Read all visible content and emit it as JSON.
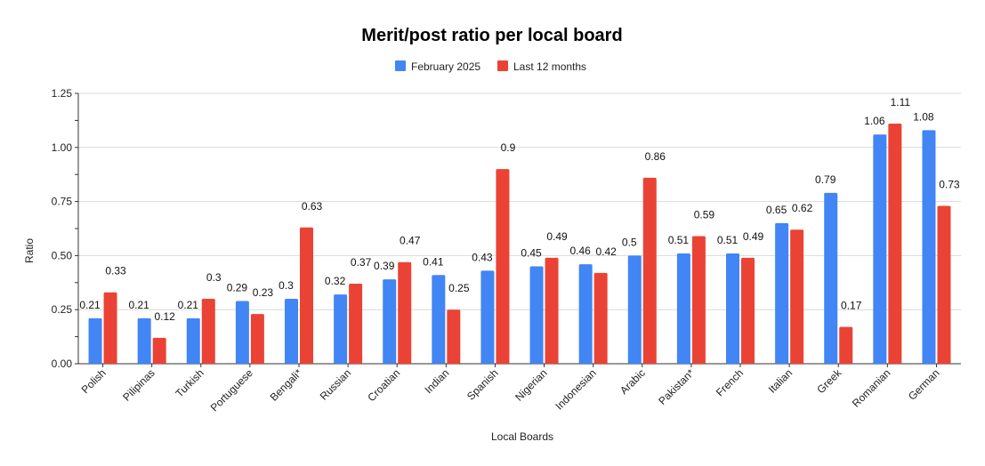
{
  "chart_data": {
    "type": "bar",
    "title": "Merit/post ratio per local board",
    "xlabel": "Local Boards",
    "ylabel": "Ratio",
    "ylim": [
      0,
      1.25
    ],
    "yticks": [
      "0.00",
      "0.25",
      "0.50",
      "0.75",
      "1.00",
      "1.25"
    ],
    "grid": true,
    "legend_position": "top",
    "categories": [
      "Polish",
      "Pilipinas",
      "Turkish",
      "Portuguese",
      "Bengali*",
      "Russian",
      "Croatian",
      "Indian",
      "Spanish",
      "Nigerian",
      "Indonesian",
      "Arabic",
      "Pakistan*",
      "French",
      "Italian",
      "Greek",
      "Romanian",
      "German"
    ],
    "series": [
      {
        "name": "February 2025",
        "color": "#4285F4",
        "values": [
          0.21,
          0.21,
          0.21,
          0.29,
          0.3,
          0.32,
          0.39,
          0.41,
          0.43,
          0.45,
          0.46,
          0.5,
          0.51,
          0.51,
          0.65,
          0.79,
          1.06,
          1.08
        ],
        "labels": [
          "0.21",
          "0.21",
          "0.21",
          "0.29",
          "0.3",
          "0.32",
          "0.39",
          "0.41",
          "0.43",
          "0.45",
          "0.46",
          "0.5",
          "0.51",
          "0.51",
          "0.65",
          "0.79",
          "1.06",
          "1.08"
        ]
      },
      {
        "name": "Last 12 months",
        "color": "#EA4335",
        "values": [
          0.33,
          0.12,
          0.3,
          0.23,
          0.63,
          0.37,
          0.47,
          0.25,
          0.9,
          0.49,
          0.42,
          0.86,
          0.59,
          0.49,
          0.62,
          0.17,
          1.11,
          0.73
        ],
        "labels": [
          "0.33",
          "0.12",
          "0.3",
          "0.23",
          "0.63",
          "0.37",
          "0.47",
          "0.25",
          "0.9",
          "0.49",
          "0.42",
          "0.86",
          "0.59",
          "0.49",
          "0.62",
          "0.17",
          "1.11",
          "0.73"
        ]
      }
    ]
  }
}
